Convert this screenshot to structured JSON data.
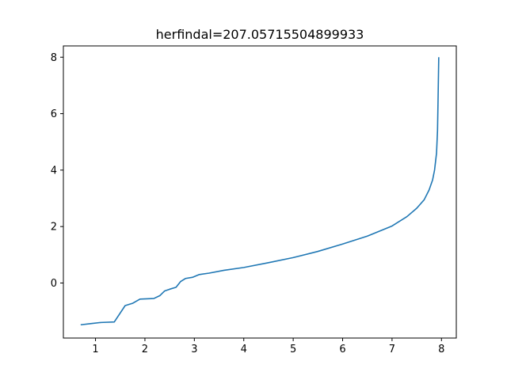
{
  "chart_data": {
    "type": "line",
    "title": "herfindal=207.05715504899933",
    "xlabel": "",
    "ylabel": "",
    "xlim": [
      0.35,
      8.3
    ],
    "ylim": [
      -1.95,
      8.4
    ],
    "xticks": [
      1,
      2,
      3,
      4,
      5,
      6,
      7,
      8
    ],
    "yticks": [
      0,
      2,
      4,
      6,
      8
    ],
    "grid": false,
    "legend": "none",
    "series": [
      {
        "color": "#1f77b4",
        "points": [
          [
            0.7,
            -1.48
          ],
          [
            0.9,
            -1.44
          ],
          [
            1.1,
            -1.4
          ],
          [
            1.38,
            -1.38
          ],
          [
            1.6,
            -0.8
          ],
          [
            1.75,
            -0.72
          ],
          [
            1.9,
            -0.57
          ],
          [
            2.18,
            -0.55
          ],
          [
            2.3,
            -0.45
          ],
          [
            2.4,
            -0.28
          ],
          [
            2.5,
            -0.22
          ],
          [
            2.63,
            -0.15
          ],
          [
            2.72,
            0.05
          ],
          [
            2.82,
            0.16
          ],
          [
            2.96,
            0.2
          ],
          [
            3.1,
            0.3
          ],
          [
            3.3,
            0.35
          ],
          [
            3.6,
            0.45
          ],
          [
            4.0,
            0.55
          ],
          [
            4.5,
            0.72
          ],
          [
            5.0,
            0.9
          ],
          [
            5.5,
            1.12
          ],
          [
            6.0,
            1.38
          ],
          [
            6.5,
            1.66
          ],
          [
            7.0,
            2.02
          ],
          [
            7.3,
            2.35
          ],
          [
            7.5,
            2.65
          ],
          [
            7.65,
            2.95
          ],
          [
            7.75,
            3.3
          ],
          [
            7.82,
            3.65
          ],
          [
            7.86,
            4.0
          ],
          [
            7.9,
            4.6
          ],
          [
            7.92,
            5.4
          ],
          [
            7.93,
            6.4
          ],
          [
            7.945,
            8.0
          ]
        ]
      }
    ]
  }
}
